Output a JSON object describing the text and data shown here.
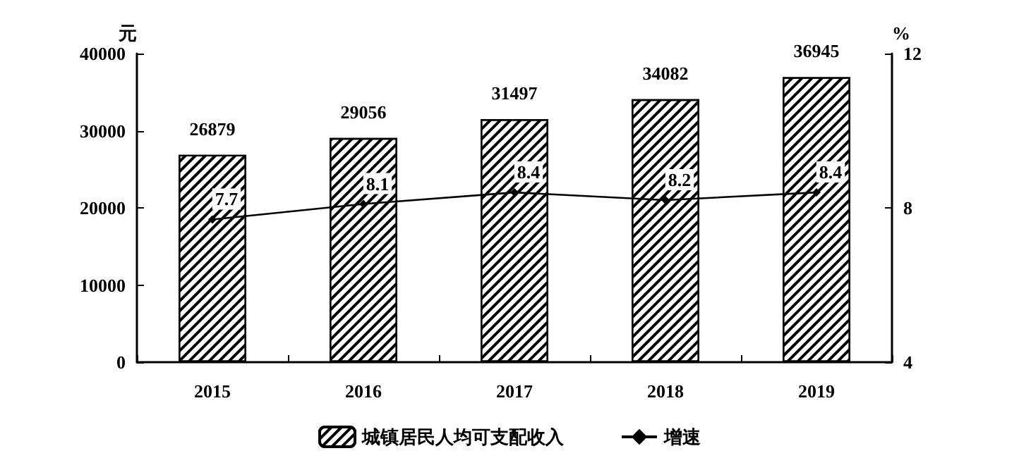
{
  "chart_data": {
    "type": "bar",
    "categories": [
      "2015",
      "2016",
      "2017",
      "2018",
      "2019"
    ],
    "ylabel": "元",
    "y2label": "%",
    "ylim": [
      0,
      40000
    ],
    "yticks": [
      0,
      10000,
      20000,
      30000,
      40000
    ],
    "y2lim": [
      4,
      12
    ],
    "y2ticks": [
      4,
      8,
      12
    ],
    "series": [
      {
        "name": "城镇居民人均可支配收入",
        "color": "#000000",
        "values": [
          26879,
          29056,
          31497,
          34082,
          36945
        ]
      },
      {
        "name": "增速",
        "type": "line",
        "axis": "y2",
        "color": "#000000",
        "marker": "diamond",
        "values": [
          7.7,
          8.1,
          8.4,
          8.2,
          8.4
        ]
      }
    ],
    "data_labels": true,
    "legend": "bottom",
    "grid": false
  }
}
